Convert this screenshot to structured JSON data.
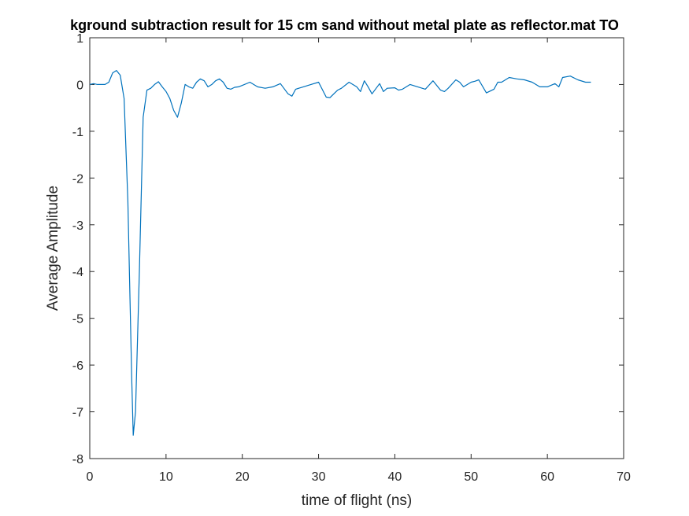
{
  "chart_data": {
    "type": "line",
    "title": "kground subtraction result for 15 cm sand without metal plate as reflector.mat TO",
    "xlabel": "time of flight (ns)",
    "ylabel": "Average Amplitude",
    "xlim": [
      0,
      70
    ],
    "ylim": [
      -8,
      1
    ],
    "xticks": [
      "0",
      "10",
      "20",
      "30",
      "40",
      "50",
      "60",
      "70"
    ],
    "yticks": [
      "1",
      "0",
      "-1",
      "-2",
      "-3",
      "-4",
      "-5",
      "-6",
      "-7",
      "-8"
    ],
    "grid": false,
    "line_color": "#0072BD",
    "series": [
      {
        "x": [
          0,
          0.5,
          1,
          1.5,
          2,
          2.5,
          3,
          3.5,
          4,
          4.5,
          5,
          5.5,
          5.7,
          6,
          6.5,
          7,
          7.5,
          8,
          8.5,
          9,
          9.5,
          10,
          10.5,
          11,
          11.5,
          12,
          12.5,
          13,
          13.5,
          14,
          14.5,
          15,
          15.5,
          16,
          16.5,
          17,
          17.5,
          18,
          18.5,
          19,
          19.5,
          20,
          21,
          22,
          23,
          24,
          25,
          26,
          26.5,
          27,
          28,
          29,
          30,
          31,
          31.5,
          32,
          32.5,
          33,
          34,
          35,
          35.5,
          36,
          36.5,
          37,
          38,
          38.5,
          39,
          40,
          40.5,
          41,
          42,
          43,
          44,
          45,
          46,
          46.5,
          47,
          48,
          48.5,
          49,
          50,
          50.5,
          51,
          52,
          53,
          53.5,
          54,
          55,
          56,
          57,
          58,
          59,
          60,
          61,
          61.5,
          62,
          63,
          64,
          65,
          65.7
        ],
        "y": [
          0,
          0.02,
          0,
          0,
          0,
          0.05,
          0.25,
          0.3,
          0.2,
          -0.3,
          -2.5,
          -6.3,
          -7.5,
          -7.0,
          -4.0,
          -0.7,
          -0.12,
          -0.08,
          0,
          0.06,
          -0.05,
          -0.15,
          -0.3,
          -0.55,
          -0.7,
          -0.4,
          0,
          -0.05,
          -0.08,
          0.05,
          0.12,
          0.08,
          -0.05,
          0,
          0.08,
          0.12,
          0.05,
          -0.08,
          -0.1,
          -0.06,
          -0.05,
          -0.02,
          0.05,
          -0.05,
          -0.08,
          -0.05,
          0.02,
          -0.2,
          -0.25,
          -0.1,
          -0.05,
          0,
          0.05,
          -0.27,
          -0.28,
          -0.2,
          -0.12,
          -0.08,
          0.05,
          -0.05,
          -0.15,
          0.08,
          -0.05,
          -0.2,
          0.02,
          -0.15,
          -0.08,
          -0.07,
          -0.12,
          -0.1,
          0,
          -0.05,
          -0.1,
          0.08,
          -0.12,
          -0.15,
          -0.08,
          0.1,
          0.05,
          -0.05,
          0.05,
          0.07,
          0.1,
          -0.18,
          -0.1,
          0.05,
          0.05,
          0.15,
          0.12,
          0.1,
          0.05,
          -0.05,
          -0.05,
          0.02,
          -0.05,
          0.15,
          0.18,
          0.1,
          0.05,
          0.05
        ]
      }
    ]
  }
}
